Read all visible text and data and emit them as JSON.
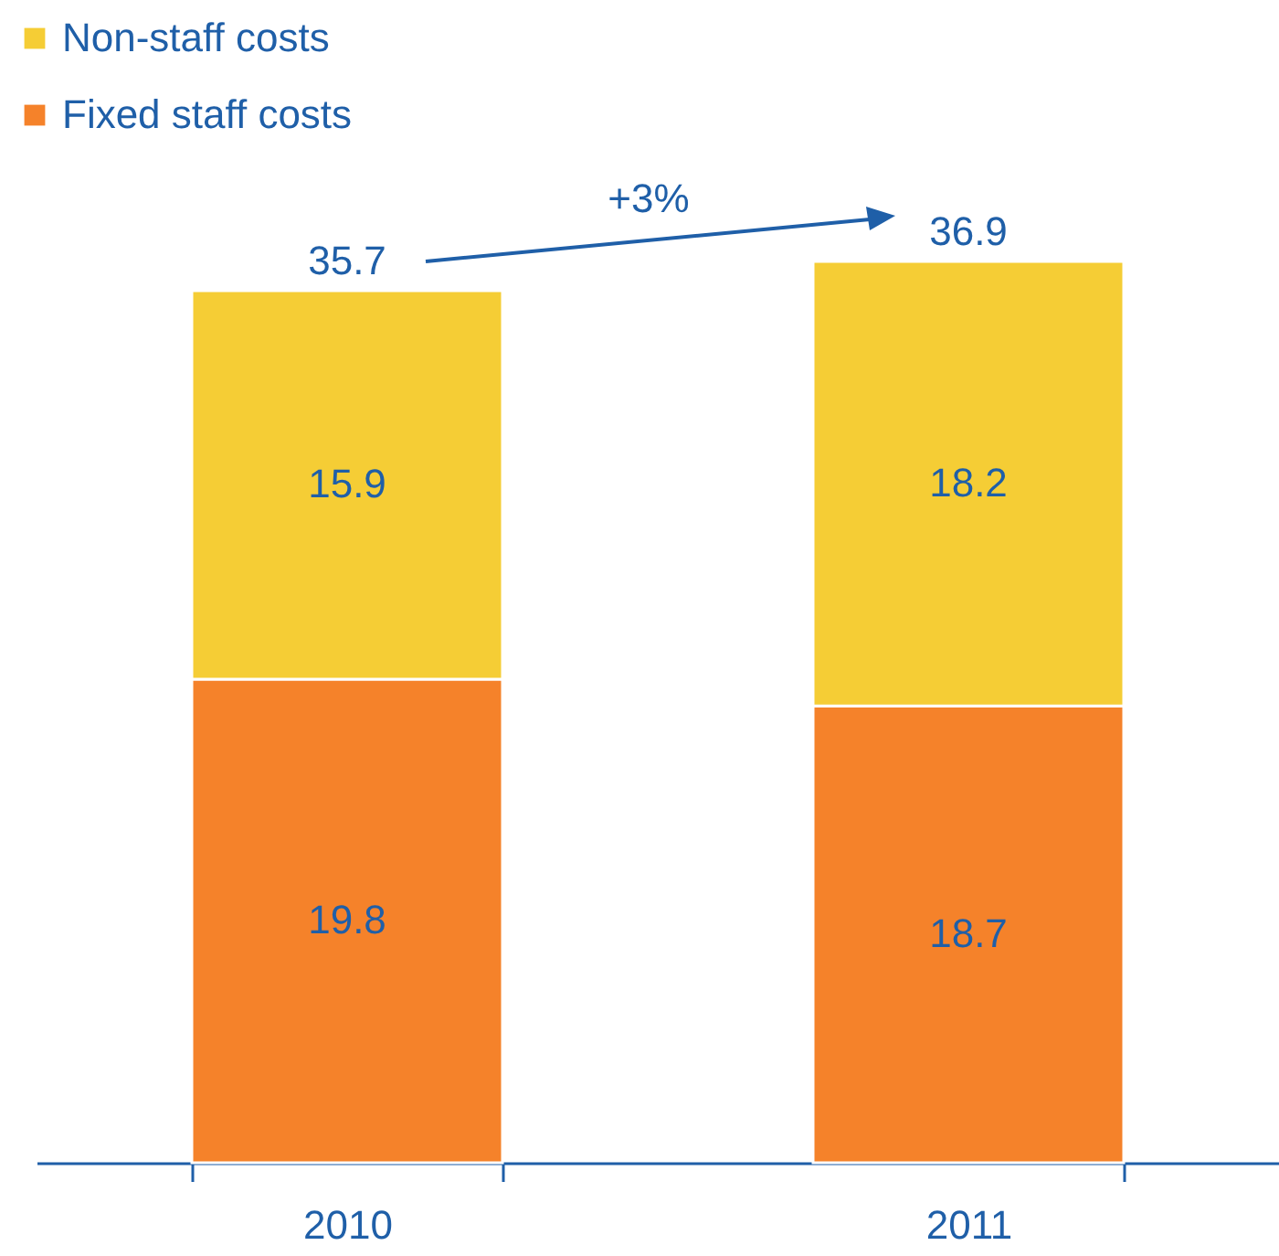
{
  "chart_data": {
    "type": "bar",
    "stacked": true,
    "categories": [
      "2010",
      "2011"
    ],
    "series": [
      {
        "name": "Fixed staff costs",
        "color": "#f5822a",
        "values": [
          19.8,
          18.7
        ]
      },
      {
        "name": "Non-staff costs",
        "color": "#f5cd35",
        "values": [
          15.9,
          18.2
        ]
      }
    ],
    "data_labels": true,
    "totals": [
      "35.7",
      "36.9"
    ],
    "annotations": [
      "+3%"
    ],
    "legend": "top left"
  }
}
